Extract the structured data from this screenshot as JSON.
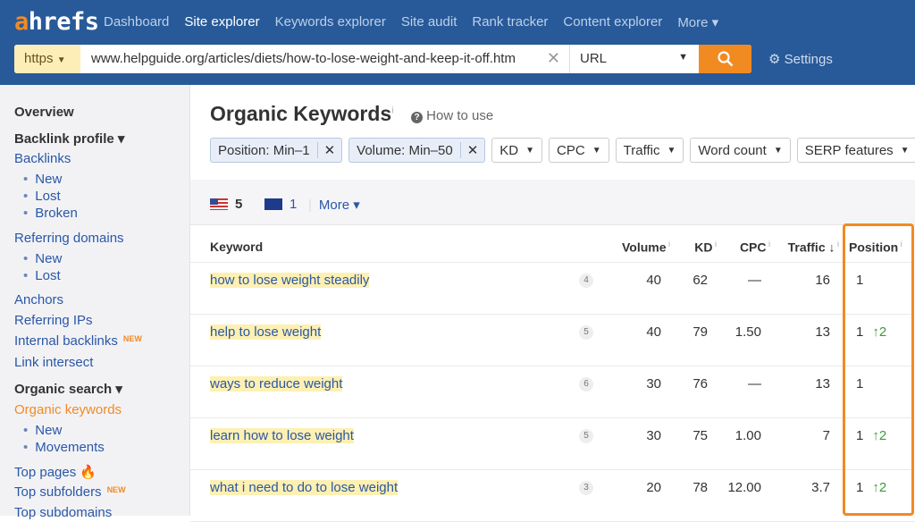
{
  "brand": {
    "logo": "ahrefs",
    "accent": "#f28a22",
    "nav_bg": "#285a99"
  },
  "nav": [
    "Dashboard",
    "Site explorer",
    "Keywords explorer",
    "Site audit",
    "Rank tracker",
    "Content explorer",
    "More ▾"
  ],
  "search": {
    "protocol": "https",
    "url": "www.helpguide.org/articles/diets/how-to-lose-weight-and-keep-it-off.htm",
    "mode": "URL",
    "settings": "Settings"
  },
  "sidebar": [
    {
      "label": "Overview",
      "type": "h"
    },
    {
      "label": "Backlink profile ▾",
      "type": "h"
    },
    {
      "label": "Backlinks"
    },
    {
      "label": "New",
      "type": "sub"
    },
    {
      "label": "Lost",
      "type": "sub"
    },
    {
      "label": "Broken",
      "type": "sub"
    },
    {
      "label": "Referring domains"
    },
    {
      "label": "New",
      "type": "sub"
    },
    {
      "label": "Lost",
      "type": "sub"
    },
    {
      "label": "Anchors"
    },
    {
      "label": "Referring IPs"
    },
    {
      "label": "Internal backlinks",
      "badge": "NEW"
    },
    {
      "label": "Link intersect"
    },
    {
      "label": "Organic search ▾",
      "type": "h"
    },
    {
      "label": "Organic keywords",
      "type": "on"
    },
    {
      "label": "New",
      "type": "sub"
    },
    {
      "label": "Movements",
      "type": "sub"
    },
    {
      "label": "Top pages",
      "icon": "fire-icon"
    },
    {
      "label": "Top subfolders",
      "badge": "NEW"
    },
    {
      "label": "Top subdomains"
    }
  ],
  "main": {
    "title": "Organic Keywords",
    "title_info": "i",
    "how_to": "How to use",
    "filters": [
      {
        "label": "Position: Min–1",
        "active": true
      },
      {
        "label": "Volume: Min–50",
        "active": true
      },
      {
        "label": "KD"
      },
      {
        "label": "CPC"
      },
      {
        "label": "Traffic"
      },
      {
        "label": "Word count"
      },
      {
        "label": "SERP features"
      }
    ],
    "countries": [
      {
        "flag": "us",
        "count": "5"
      },
      {
        "flag": "au",
        "count": "1"
      }
    ],
    "more": "More ▾",
    "columns": [
      "Keyword",
      "Volume",
      "KD",
      "CPC",
      "Traffic ↓",
      "Position"
    ],
    "rows": [
      {
        "keyword": "how to lose weight steadily",
        "words": "4",
        "volume": "40",
        "kd": "62",
        "cpc": "—",
        "traffic": "16",
        "position": "1",
        "change": ""
      },
      {
        "keyword": "help to lose weight",
        "words": "5",
        "volume": "40",
        "kd": "79",
        "cpc": "1.50",
        "traffic": "13",
        "position": "1",
        "change": "↑2"
      },
      {
        "keyword": "ways to reduce weight",
        "words": "6",
        "volume": "30",
        "kd": "76",
        "cpc": "—",
        "traffic": "13",
        "position": "1",
        "change": ""
      },
      {
        "keyword": "learn how to lose weight",
        "words": "5",
        "volume": "30",
        "kd": "75",
        "cpc": "1.00",
        "traffic": "7",
        "position": "1",
        "change": "↑2"
      },
      {
        "keyword": "what i need to do to lose weight",
        "words": "3",
        "volume": "20",
        "kd": "78",
        "cpc": "12.00",
        "traffic": "3.7",
        "position": "1",
        "change": "↑2"
      }
    ]
  }
}
